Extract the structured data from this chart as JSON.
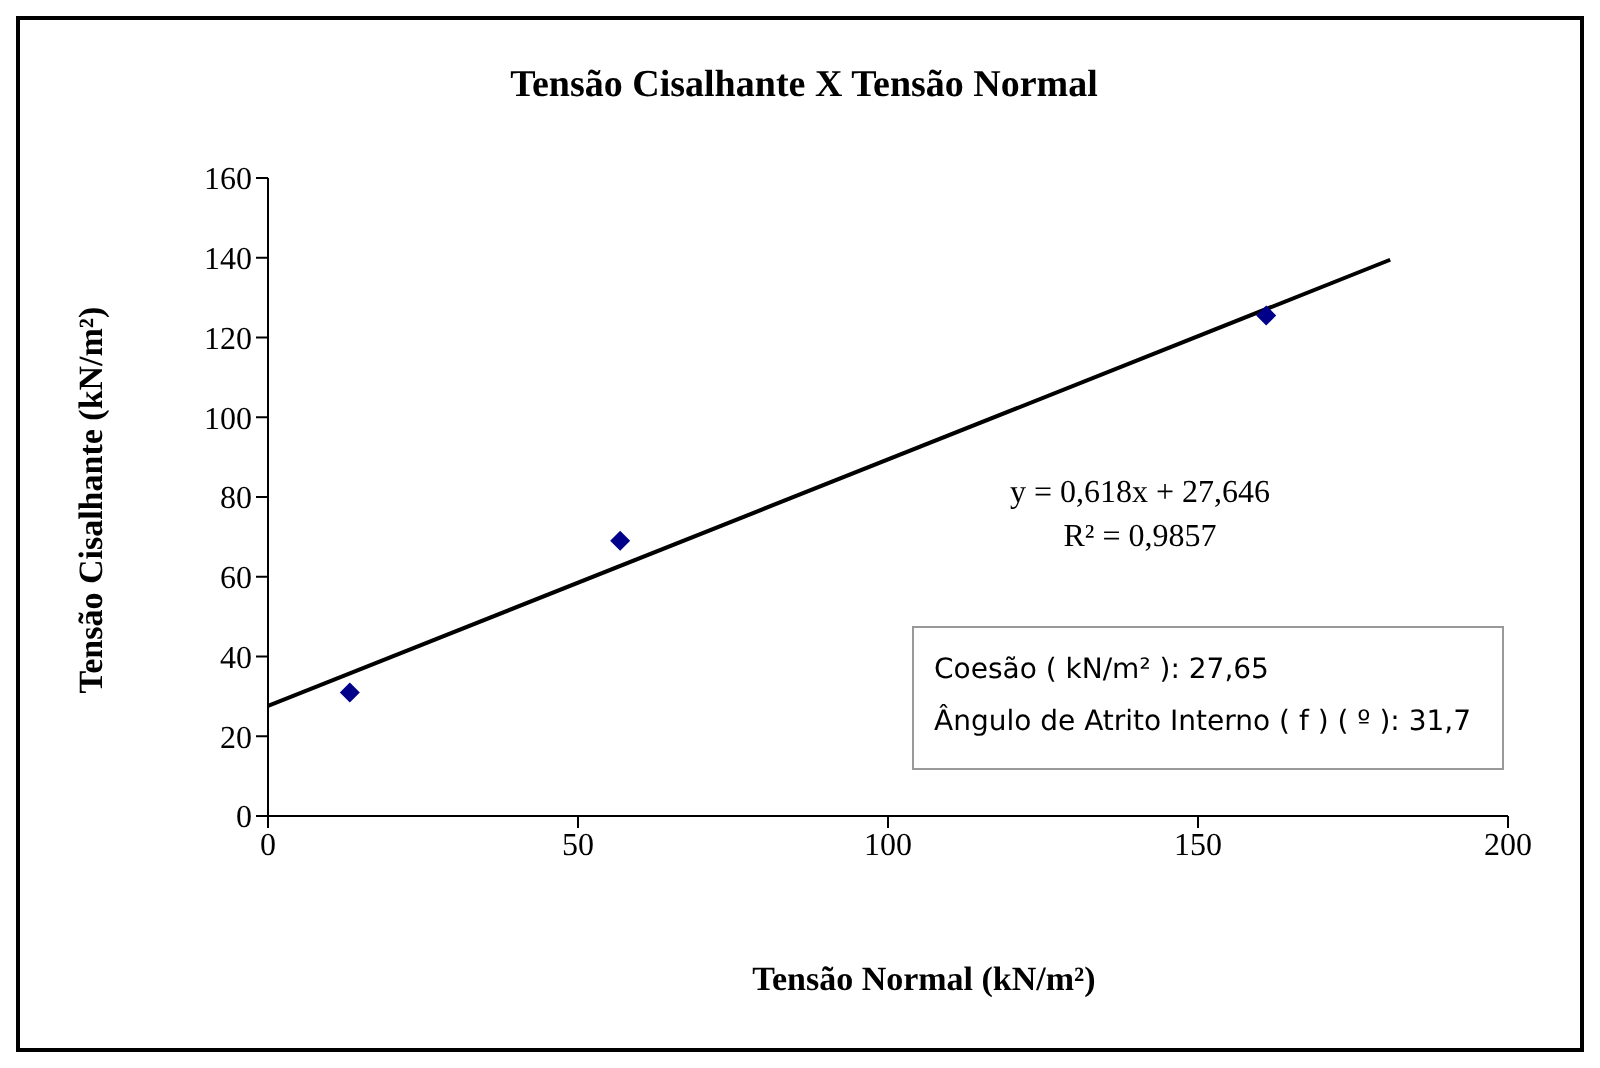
{
  "chart_data": {
    "type": "scatter",
    "title": "Tensão Cisalhante X Tensão Normal",
    "xlabel": "Tensão Normal (kN/m²)",
    "ylabel": "Tensão Cisalhante (kN/m²)",
    "xlim": [
      0,
      200
    ],
    "xticks": [
      0,
      50,
      100,
      150,
      200
    ],
    "ylim": [
      0,
      160
    ],
    "yticks": [
      0,
      20,
      40,
      60,
      80,
      100,
      120,
      140,
      160
    ],
    "grid": false,
    "legend": false,
    "series": [
      {
        "color": "#00008b",
        "marker": "diamond",
        "x": [
          13.2,
          56.8,
          161
        ],
        "values": [
          31,
          69,
          125.5
        ]
      },
      {
        "type": "line",
        "color": "#000000",
        "marker": "none",
        "x": [
          0,
          181
        ],
        "values": [
          27.6,
          139.5
        ]
      }
    ],
    "annotations": [
      "y = 0,618x + 27,646",
      "R² = 0,9857",
      "Coesão ( kN/m² ): 27,65",
      "Ângulo de Atrito Interno ( f ) ( º ): 31,7"
    ]
  }
}
